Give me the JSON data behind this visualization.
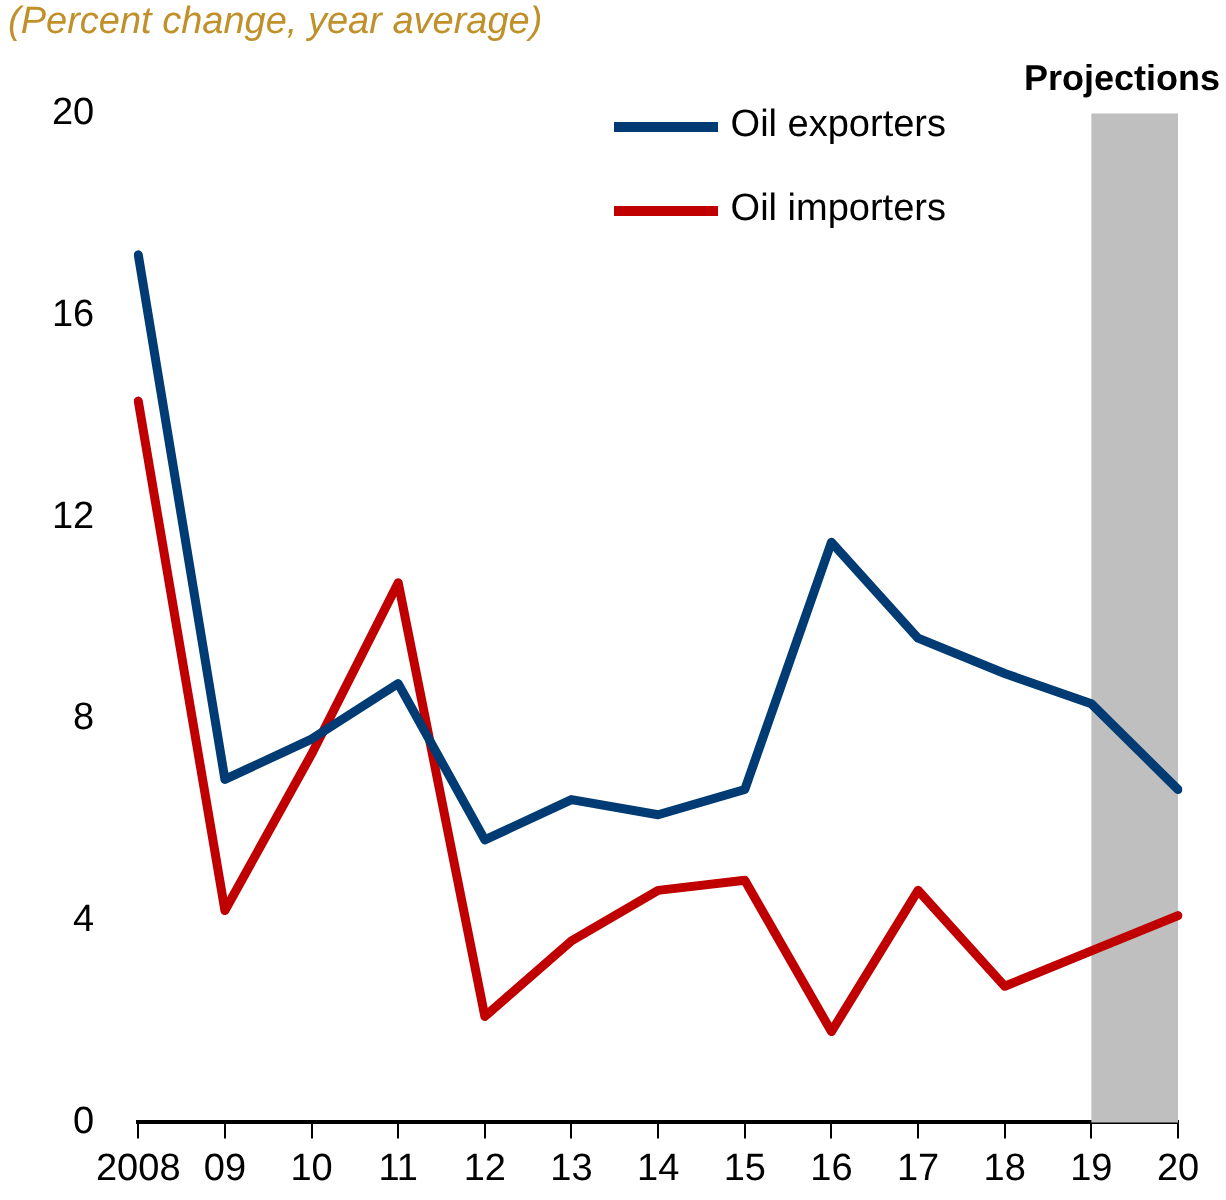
{
  "chart_data": {
    "type": "line",
    "title": "(Percent change, year average)",
    "categories": [
      "2008",
      "09",
      "10",
      "11",
      "12",
      "13",
      "14",
      "15",
      "16",
      "17",
      "18",
      "19",
      "20"
    ],
    "series": [
      {
        "name": "Oil exporters",
        "color": "#003b73",
        "values": [
          17.2,
          6.8,
          7.6,
          8.7,
          5.6,
          6.4,
          6.1,
          6.6,
          11.5,
          9.6,
          8.9,
          8.3,
          6.6
        ]
      },
      {
        "name": "Oil importers",
        "color": "#c00000",
        "values": [
          14.3,
          4.2,
          7.3,
          10.7,
          2.1,
          3.6,
          4.6,
          4.8,
          1.8,
          4.6,
          2.7,
          3.4,
          4.1
        ]
      }
    ],
    "ylim": [
      0,
      20
    ],
    "yticks": [
      0,
      4,
      8,
      12,
      16,
      20
    ],
    "grid": false,
    "legend": "top right",
    "marker": "none",
    "line_style": "solid",
    "bands": [
      {
        "axis": "x",
        "from": "19",
        "to": "20",
        "label": "Projections",
        "color": "#bfbfbf"
      }
    ]
  }
}
